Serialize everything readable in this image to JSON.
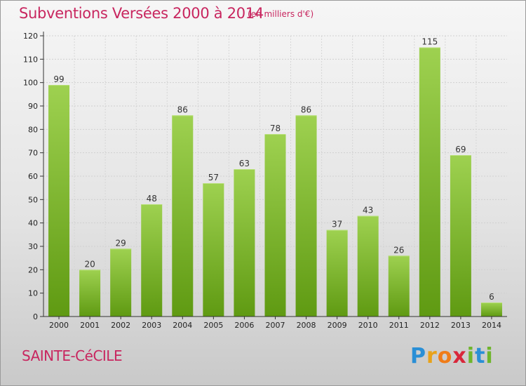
{
  "header": {
    "title": "Subventions Versées 2000 à 2014",
    "subtitle": "(en milliers d'€)"
  },
  "footer": {
    "town": "SAINTE-CéCILE",
    "logo_text": "Proxiti"
  },
  "colors": {
    "accent": "#c8265f",
    "bar_top": "#9ed150",
    "bar_bottom": "#5f9a12"
  },
  "chart_data": {
    "type": "bar",
    "title": "Subventions Versées 2000 à 2014",
    "subtitle": "(en milliers d'€)",
    "categories": [
      "2000",
      "2001",
      "2002",
      "2003",
      "2004",
      "2005",
      "2006",
      "2007",
      "2008",
      "2009",
      "2010",
      "2011",
      "2012",
      "2013",
      "2014"
    ],
    "values": [
      99,
      20,
      29,
      48,
      86,
      57,
      63,
      78,
      86,
      37,
      43,
      26,
      115,
      69,
      6
    ],
    "ylim": [
      0,
      120
    ],
    "yticks": [
      0,
      10,
      20,
      30,
      40,
      50,
      60,
      70,
      80,
      90,
      100,
      110,
      120
    ],
    "grid": true,
    "data_labels": true
  }
}
